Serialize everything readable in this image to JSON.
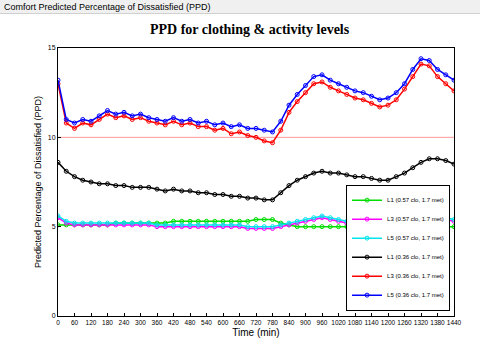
{
  "window_title": "Comfort Predicted Percentage of Dissatisfied (PPD)",
  "chart_data": {
    "type": "line",
    "title": "PPD for clothing & activity levels",
    "x_label": "Time (min)",
    "y_label": "Predicted Percentage of Dissatisfied (PPD)",
    "xlim": [
      0,
      1440
    ],
    "xticks": [
      0,
      60,
      120,
      180,
      240,
      300,
      360,
      420,
      480,
      540,
      600,
      660,
      720,
      780,
      840,
      900,
      960,
      1020,
      1080,
      1140,
      1200,
      1260,
      1320,
      1380,
      1440
    ],
    "ylim": [
      0,
      15
    ],
    "yticks": [
      0,
      5,
      10,
      15
    ],
    "grid": false,
    "legend": "bottom right",
    "marker": "circle",
    "threshold": {
      "value": 10,
      "color": "#ff9999"
    },
    "x": [
      0,
      30,
      60,
      90,
      120,
      150,
      180,
      210,
      240,
      270,
      300,
      330,
      360,
      390,
      420,
      450,
      480,
      510,
      540,
      570,
      600,
      630,
      660,
      690,
      720,
      750,
      780,
      810,
      840,
      870,
      900,
      930,
      960,
      990,
      1020,
      1050,
      1080,
      1110,
      1140,
      1170,
      1200,
      1230,
      1260,
      1290,
      1320,
      1350,
      1380,
      1410,
      1440
    ],
    "series": [
      {
        "name": "L1 (0.57 clo, 1.7 met)",
        "color": "#00dd00",
        "values": [
          5.1,
          5.1,
          5.1,
          5.1,
          5.1,
          5.1,
          5.1,
          5.2,
          5.2,
          5.2,
          5.2,
          5.2,
          5.2,
          5.2,
          5.3,
          5.3,
          5.3,
          5.3,
          5.3,
          5.3,
          5.3,
          5.3,
          5.3,
          5.3,
          5.4,
          5.4,
          5.4,
          5.2,
          5.1,
          5.0,
          5.0,
          5.0,
          5.0,
          5.0,
          5.0,
          5.0,
          5.0,
          5.0,
          5.0,
          5.0,
          5.0,
          5.0,
          5.0,
          5.0,
          5.0,
          5.0,
          5.0,
          5.0,
          5.0
        ]
      },
      {
        "name": "L3 (0.57 clo, 1.7 met)",
        "color": "#ff00ff",
        "values": [
          5.5,
          5.2,
          5.1,
          5.1,
          5.1,
          5.1,
          5.1,
          5.1,
          5.1,
          5.1,
          5.1,
          5.1,
          5.0,
          5.0,
          5.0,
          5.0,
          5.0,
          5.0,
          5.0,
          5.0,
          5.0,
          5.0,
          5.0,
          4.9,
          4.9,
          4.9,
          4.9,
          5.0,
          5.1,
          5.2,
          5.3,
          5.4,
          5.5,
          5.4,
          5.3,
          5.2,
          5.2,
          5.1,
          5.1,
          5.1,
          5.1,
          5.2,
          5.3,
          5.5,
          5.6,
          5.6,
          5.5,
          5.4,
          5.3
        ]
      },
      {
        "name": "L5 (0.57 clo, 1.7 met)",
        "color": "#00e5ee",
        "values": [
          5.6,
          5.3,
          5.2,
          5.2,
          5.2,
          5.2,
          5.2,
          5.2,
          5.2,
          5.2,
          5.2,
          5.2,
          5.1,
          5.1,
          5.1,
          5.1,
          5.1,
          5.1,
          5.1,
          5.1,
          5.1,
          5.1,
          5.1,
          5.0,
          5.0,
          5.0,
          5.0,
          5.1,
          5.2,
          5.3,
          5.4,
          5.5,
          5.6,
          5.5,
          5.4,
          5.3,
          5.3,
          5.2,
          5.2,
          5.2,
          5.2,
          5.3,
          5.4,
          5.6,
          5.7,
          5.7,
          5.6,
          5.5,
          5.4
        ]
      },
      {
        "name": "L1 (0.36 clo, 1.7 met)",
        "color": "#000000",
        "values": [
          8.6,
          8.1,
          7.8,
          7.6,
          7.5,
          7.4,
          7.4,
          7.3,
          7.3,
          7.2,
          7.2,
          7.2,
          7.1,
          7.0,
          7.1,
          7.0,
          7.0,
          6.9,
          6.9,
          6.8,
          6.8,
          6.7,
          6.7,
          6.6,
          6.6,
          6.5,
          6.5,
          6.9,
          7.3,
          7.6,
          7.8,
          8.0,
          8.1,
          8.0,
          8.0,
          7.9,
          7.8,
          7.8,
          7.7,
          7.6,
          7.6,
          7.8,
          8.0,
          8.3,
          8.6,
          8.8,
          8.8,
          8.7,
          8.5
        ]
      },
      {
        "name": "L3 (0.36 clo, 1.7 met)",
        "color": "#ff0000",
        "values": [
          13.0,
          10.8,
          10.5,
          10.8,
          10.7,
          11.0,
          11.3,
          11.1,
          11.2,
          11.0,
          11.1,
          10.9,
          10.8,
          10.7,
          10.9,
          10.7,
          10.8,
          10.6,
          10.6,
          10.4,
          10.5,
          10.2,
          10.3,
          10.1,
          10.0,
          9.8,
          9.7,
          10.4,
          11.4,
          12.0,
          12.5,
          13.0,
          13.1,
          12.8,
          12.6,
          12.4,
          12.2,
          12.1,
          11.9,
          11.7,
          11.8,
          12.1,
          12.7,
          13.4,
          14.1,
          14.0,
          13.4,
          13.0,
          12.6
        ]
      },
      {
        "name": "L5 (0.36 clo, 1.7 met)",
        "color": "#0000ff",
        "values": [
          13.2,
          11.0,
          10.8,
          11.0,
          10.9,
          11.2,
          11.5,
          11.3,
          11.4,
          11.2,
          11.3,
          11.1,
          11.0,
          10.9,
          11.1,
          10.9,
          11.0,
          10.8,
          10.9,
          10.7,
          10.8,
          10.6,
          10.7,
          10.5,
          10.5,
          10.4,
          10.3,
          10.9,
          11.8,
          12.4,
          12.9,
          13.4,
          13.5,
          13.2,
          13.0,
          12.8,
          12.6,
          12.5,
          12.3,
          12.1,
          12.2,
          12.5,
          13.0,
          13.8,
          14.4,
          14.3,
          13.8,
          13.5,
          13.2
        ]
      }
    ]
  }
}
